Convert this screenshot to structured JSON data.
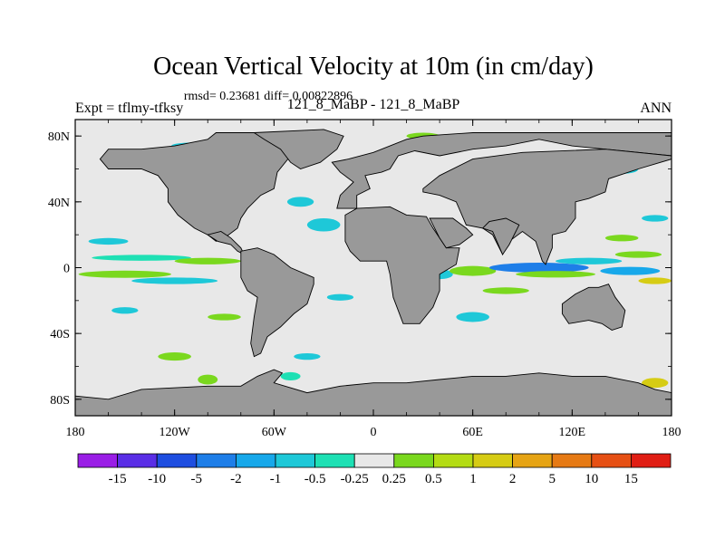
{
  "chart_data": {
    "type": "heatmap",
    "title": "Ocean Vertical Velocity at 10m (in cm/day)",
    "subtitle": "rmsd= 0.23681 diff= 0.00822896",
    "left_label": "Expt = tflmy-tfksy",
    "center_label": "121_8_MaBP - 121_8_MaBP",
    "right_label": "ANN",
    "x_ticks": [
      "180",
      "120W",
      "60W",
      "0",
      "60E",
      "120E",
      "180"
    ],
    "x_tick_values": [
      -180,
      -120,
      -60,
      0,
      60,
      120,
      180
    ],
    "y_ticks": [
      "80N",
      "40N",
      "0",
      "40S",
      "80S"
    ],
    "y_tick_values": [
      80,
      40,
      0,
      -40,
      -80
    ],
    "xlim": [
      -180,
      180
    ],
    "ylim": [
      -90,
      90
    ],
    "colorbar": {
      "labels": [
        "-15",
        "-10",
        "-5",
        "-2",
        "-1",
        "-0.5",
        "-0.25",
        "0.25",
        "0.5",
        "1",
        "2",
        "5",
        "10",
        "15"
      ],
      "colors": [
        "#9a1ee6",
        "#5a2ee6",
        "#1e4ee0",
        "#1e7ee8",
        "#17a8ea",
        "#1ec8d8",
        "#1ee0b4",
        "#e8e8e8",
        "#7ad81e",
        "#b4dc14",
        "#d6cc14",
        "#e6a414",
        "#e67a14",
        "#e65014",
        "#e01e14"
      ]
    },
    "land_color": "#999999",
    "ocean_background": "#e8e8e8",
    "land_regions": [
      {
        "name": "north-america",
        "points": [
          [
            -95,
            82
          ],
          [
            -60,
            82
          ],
          [
            -40,
            78
          ],
          [
            -50,
            68
          ],
          [
            -58,
            58
          ],
          [
            -60,
            48
          ],
          [
            -68,
            44
          ],
          [
            -76,
            36
          ],
          [
            -80,
            30
          ],
          [
            -82,
            24
          ],
          [
            -90,
            18
          ],
          [
            -95,
            16
          ],
          [
            -100,
            20
          ],
          [
            -108,
            24
          ],
          [
            -118,
            32
          ],
          [
            -124,
            40
          ],
          [
            -124,
            48
          ],
          [
            -130,
            56
          ],
          [
            -140,
            60
          ],
          [
            -150,
            60
          ],
          [
            -160,
            60
          ],
          [
            -165,
            66
          ],
          [
            -160,
            72
          ],
          [
            -140,
            72
          ],
          [
            -120,
            74
          ],
          [
            -100,
            78
          ]
        ]
      },
      {
        "name": "greenland",
        "points": [
          [
            -72,
            82
          ],
          [
            -30,
            84
          ],
          [
            -18,
            80
          ],
          [
            -22,
            72
          ],
          [
            -32,
            64
          ],
          [
            -44,
            60
          ],
          [
            -50,
            64
          ],
          [
            -56,
            72
          ],
          [
            -66,
            78
          ]
        ]
      },
      {
        "name": "central-america",
        "points": [
          [
            -100,
            20
          ],
          [
            -94,
            16
          ],
          [
            -86,
            14
          ],
          [
            -82,
            10
          ],
          [
            -78,
            8
          ],
          [
            -80,
            12
          ],
          [
            -86,
            18
          ],
          [
            -92,
            22
          ]
        ]
      },
      {
        "name": "south-america",
        "points": [
          [
            -80,
            10
          ],
          [
            -70,
            12
          ],
          [
            -60,
            8
          ],
          [
            -50,
            0
          ],
          [
            -36,
            -6
          ],
          [
            -36,
            -10
          ],
          [
            -40,
            -22
          ],
          [
            -48,
            -28
          ],
          [
            -56,
            -36
          ],
          [
            -64,
            -42
          ],
          [
            -68,
            -52
          ],
          [
            -72,
            -54
          ],
          [
            -74,
            -46
          ],
          [
            -72,
            -30
          ],
          [
            -70,
            -18
          ],
          [
            -76,
            -14
          ],
          [
            -80,
            -6
          ],
          [
            -80,
            0
          ]
        ]
      },
      {
        "name": "eurasia",
        "points": [
          [
            -10,
            36
          ],
          [
            -10,
            44
          ],
          [
            -2,
            48
          ],
          [
            -5,
            56
          ],
          [
            5,
            58
          ],
          [
            10,
            60
          ],
          [
            15,
            68
          ],
          [
            25,
            71
          ],
          [
            40,
            68
          ],
          [
            60,
            72
          ],
          [
            80,
            74
          ],
          [
            100,
            78
          ],
          [
            120,
            74
          ],
          [
            140,
            72
          ],
          [
            160,
            70
          ],
          [
            180,
            68
          ],
          [
            180,
            82
          ],
          [
            130,
            82
          ],
          [
            90,
            82
          ],
          [
            60,
            82
          ],
          [
            30,
            80
          ],
          [
            20,
            78
          ],
          [
            10,
            74
          ],
          [
            0,
            70
          ],
          [
            -15,
            66
          ],
          [
            -25,
            64
          ],
          [
            -20,
            58
          ],
          [
            -12,
            52
          ],
          [
            -20,
            44
          ],
          [
            -22,
            36
          ]
        ]
      },
      {
        "name": "asia-south",
        "points": [
          [
            30,
            46
          ],
          [
            40,
            44
          ],
          [
            50,
            40
          ],
          [
            56,
            26
          ],
          [
            66,
            24
          ],
          [
            72,
            20
          ],
          [
            78,
            8
          ],
          [
            82,
            16
          ],
          [
            90,
            22
          ],
          [
            98,
            16
          ],
          [
            102,
            4
          ],
          [
            104,
            2
          ],
          [
            108,
            12
          ],
          [
            108,
            20
          ],
          [
            116,
            22
          ],
          [
            122,
            30
          ],
          [
            122,
            40
          ],
          [
            130,
            42
          ],
          [
            140,
            46
          ],
          [
            142,
            54
          ],
          [
            160,
            60
          ],
          [
            180,
            66
          ],
          [
            180,
            68
          ],
          [
            140,
            72
          ],
          [
            90,
            70
          ],
          [
            60,
            66
          ],
          [
            40,
            56
          ],
          [
            30,
            48
          ]
        ]
      },
      {
        "name": "africa",
        "points": [
          [
            -17,
            32
          ],
          [
            -10,
            36
          ],
          [
            10,
            37
          ],
          [
            20,
            32
          ],
          [
            32,
            31
          ],
          [
            36,
            24
          ],
          [
            44,
            12
          ],
          [
            52,
            12
          ],
          [
            50,
            2
          ],
          [
            40,
            -4
          ],
          [
            40,
            -14
          ],
          [
            36,
            -24
          ],
          [
            28,
            -34
          ],
          [
            18,
            -34
          ],
          [
            12,
            -18
          ],
          [
            10,
            -4
          ],
          [
            8,
            4
          ],
          [
            -8,
            4
          ],
          [
            -14,
            10
          ],
          [
            -17,
            16
          ],
          [
            -17,
            24
          ]
        ]
      },
      {
        "name": "arabia",
        "points": [
          [
            34,
            30
          ],
          [
            48,
            30
          ],
          [
            56,
            24
          ],
          [
            60,
            20
          ],
          [
            52,
            14
          ],
          [
            44,
            12
          ],
          [
            40,
            18
          ],
          [
            36,
            26
          ]
        ]
      },
      {
        "name": "india",
        "points": [
          [
            66,
            24
          ],
          [
            72,
            22
          ],
          [
            78,
            8
          ],
          [
            82,
            14
          ],
          [
            86,
            22
          ],
          [
            88,
            26
          ],
          [
            80,
            30
          ],
          [
            70,
            28
          ]
        ]
      },
      {
        "name": "australia",
        "points": [
          [
            114,
            -22
          ],
          [
            122,
            -16
          ],
          [
            130,
            -12
          ],
          [
            136,
            -12
          ],
          [
            142,
            -10
          ],
          [
            146,
            -18
          ],
          [
            152,
            -26
          ],
          [
            150,
            -36
          ],
          [
            144,
            -38
          ],
          [
            138,
            -34
          ],
          [
            130,
            -32
          ],
          [
            118,
            -34
          ],
          [
            114,
            -28
          ]
        ]
      },
      {
        "name": "antarctica",
        "points": [
          [
            -180,
            -78
          ],
          [
            -160,
            -80
          ],
          [
            -140,
            -74
          ],
          [
            -100,
            -72
          ],
          [
            -80,
            -72
          ],
          [
            -70,
            -66
          ],
          [
            -60,
            -62
          ],
          [
            -55,
            -64
          ],
          [
            -60,
            -70
          ],
          [
            -40,
            -76
          ],
          [
            -20,
            -72
          ],
          [
            0,
            -70
          ],
          [
            20,
            -70
          ],
          [
            40,
            -68
          ],
          [
            60,
            -66
          ],
          [
            80,
            -66
          ],
          [
            100,
            -64
          ],
          [
            120,
            -66
          ],
          [
            140,
            -66
          ],
          [
            160,
            -70
          ],
          [
            170,
            -74
          ],
          [
            180,
            -76
          ],
          [
            180,
            -90
          ],
          [
            -180,
            -90
          ]
        ]
      }
    ],
    "anomaly_patches": [
      {
        "lon": -150,
        "lat": -4,
        "rx": 28,
        "ry": 2.2,
        "color": "#7ad81e"
      },
      {
        "lon": -120,
        "lat": -8,
        "rx": 26,
        "ry": 2,
        "color": "#1ec8d8"
      },
      {
        "lon": -140,
        "lat": 6,
        "rx": 30,
        "ry": 1.8,
        "color": "#1ee0b4"
      },
      {
        "lon": -100,
        "lat": 4,
        "rx": 20,
        "ry": 2,
        "color": "#7ad81e"
      },
      {
        "lon": -160,
        "lat": 16,
        "rx": 12,
        "ry": 2,
        "color": "#1ec8d8"
      },
      {
        "lon": -30,
        "lat": 26,
        "rx": 10,
        "ry": 4,
        "color": "#1ec8d8"
      },
      {
        "lon": -44,
        "lat": 40,
        "rx": 8,
        "ry": 3,
        "color": "#1ec8d8"
      },
      {
        "lon": -110,
        "lat": 74,
        "rx": 12,
        "ry": 2,
        "color": "#1ec8d8"
      },
      {
        "lon": -60,
        "lat": 72,
        "rx": 10,
        "ry": 2.5,
        "color": "#7ad81e"
      },
      {
        "lon": 20,
        "lat": 14,
        "rx": 10,
        "ry": 2.5,
        "color": "#1ee0b4"
      },
      {
        "lon": 40,
        "lat": -4,
        "rx": 8,
        "ry": 3,
        "color": "#1ec8d8"
      },
      {
        "lon": 60,
        "lat": -2,
        "rx": 14,
        "ry": 3,
        "color": "#7ad81e"
      },
      {
        "lon": 100,
        "lat": 0,
        "rx": 30,
        "ry": 3,
        "color": "#1e7ee8"
      },
      {
        "lon": 110,
        "lat": -4,
        "rx": 24,
        "ry": 2,
        "color": "#7ad81e"
      },
      {
        "lon": 130,
        "lat": 4,
        "rx": 20,
        "ry": 2,
        "color": "#1ec8d8"
      },
      {
        "lon": 155,
        "lat": -2,
        "rx": 18,
        "ry": 2.5,
        "color": "#17a8ea"
      },
      {
        "lon": 160,
        "lat": 8,
        "rx": 14,
        "ry": 2,
        "color": "#7ad81e"
      },
      {
        "lon": 170,
        "lat": -8,
        "rx": 10,
        "ry": 2,
        "color": "#d6cc14"
      },
      {
        "lon": 80,
        "lat": -14,
        "rx": 14,
        "ry": 2,
        "color": "#7ad81e"
      },
      {
        "lon": 60,
        "lat": -30,
        "rx": 10,
        "ry": 3,
        "color": "#1ec8d8"
      },
      {
        "lon": -150,
        "lat": -26,
        "rx": 8,
        "ry": 2,
        "color": "#1ec8d8"
      },
      {
        "lon": -90,
        "lat": -30,
        "rx": 10,
        "ry": 2,
        "color": "#7ad81e"
      },
      {
        "lon": -20,
        "lat": -18,
        "rx": 8,
        "ry": 2,
        "color": "#1ec8d8"
      },
      {
        "lon": -120,
        "lat": -54,
        "rx": 10,
        "ry": 2.5,
        "color": "#7ad81e"
      },
      {
        "lon": -40,
        "lat": -54,
        "rx": 8,
        "ry": 2,
        "color": "#1ec8d8"
      },
      {
        "lon": -100,
        "lat": -68,
        "rx": 6,
        "ry": 3,
        "color": "#7ad81e"
      },
      {
        "lon": -50,
        "lat": -66,
        "rx": 6,
        "ry": 2.5,
        "color": "#1ee0b4"
      },
      {
        "lon": 40,
        "lat": -78,
        "rx": 10,
        "ry": 2.5,
        "color": "#1ec8d8"
      },
      {
        "lon": 100,
        "lat": -76,
        "rx": 16,
        "ry": 2.5,
        "color": "#7ad81e"
      },
      {
        "lon": 130,
        "lat": -78,
        "rx": 12,
        "ry": 2.5,
        "color": "#1ec8d8"
      },
      {
        "lon": 170,
        "lat": -70,
        "rx": 8,
        "ry": 3,
        "color": "#d6cc14"
      },
      {
        "lon": -160,
        "lat": -82,
        "rx": 8,
        "ry": 2,
        "color": "#1ec8d8"
      },
      {
        "lon": 150,
        "lat": 60,
        "rx": 10,
        "ry": 3,
        "color": "#1ec8d8"
      },
      {
        "lon": 150,
        "lat": 18,
        "rx": 10,
        "ry": 2,
        "color": "#7ad81e"
      },
      {
        "lon": 170,
        "lat": 30,
        "rx": 8,
        "ry": 2,
        "color": "#1ec8d8"
      },
      {
        "lon": 30,
        "lat": 80,
        "rx": 10,
        "ry": 2,
        "color": "#7ad81e"
      }
    ]
  }
}
